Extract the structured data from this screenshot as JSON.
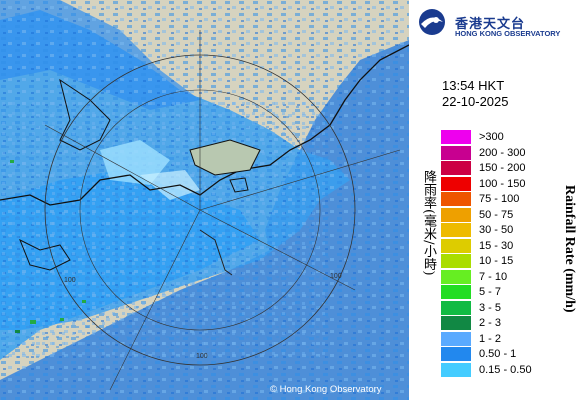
{
  "logo": {
    "name_cn": "香港天文台",
    "name_en": "HONG KONG OBSERVATORY"
  },
  "timestamp": {
    "time": "13:54 HKT",
    "date": "22-10-2025"
  },
  "legend": {
    "title_cn": "降雨率(毫米/小時)",
    "title_en": "Rainfall Rate (mm/h)",
    "items": [
      {
        "label": ">300",
        "color": "#ee00ee"
      },
      {
        "label": "200 - 300",
        "color": "#c80090"
      },
      {
        "label": "150 - 200",
        "color": "#cc0044"
      },
      {
        "label": "100 - 150",
        "color": "#ee0000"
      },
      {
        "label": "75 - 100",
        "color": "#ee5500"
      },
      {
        "label": "50 - 75",
        "color": "#eea000"
      },
      {
        "label": "30 - 50",
        "color": "#eebb00"
      },
      {
        "label": "15 - 30",
        "color": "#ddcc00"
      },
      {
        "label": "10 - 15",
        "color": "#aadd00"
      },
      {
        "label": "7 - 10",
        "color": "#66ee22"
      },
      {
        "label": "5 - 7",
        "color": "#22dd22"
      },
      {
        "label": "3 - 5",
        "color": "#11bb44"
      },
      {
        "label": "2 - 3",
        "color": "#118844"
      },
      {
        "label": "1 - 2",
        "color": "#5aaaff"
      },
      {
        "label": "0.50 - 1",
        "color": "#2288ee"
      },
      {
        "label": "0.15 - 0.50",
        "color": "#44ccff"
      }
    ]
  },
  "map": {
    "range_rings": [
      "100",
      "100",
      "100"
    ],
    "copyright": "© Hong Kong Observatory"
  }
}
